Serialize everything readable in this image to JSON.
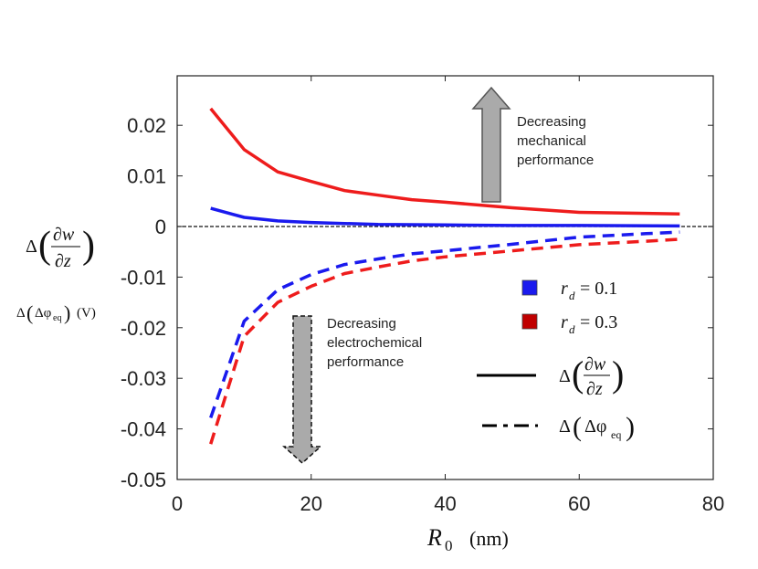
{
  "chart_data": {
    "type": "line",
    "title": "",
    "xlabel": "R0 (nm)",
    "xlabel_main": "R",
    "xlabel_sub": "0",
    "xlabel_unit": "(nm)",
    "ylabel_top": {
      "prefix": "Δ",
      "numerator": "∂w",
      "denominator": "∂z"
    },
    "ylabel_bottom": {
      "prefix": "Δ",
      "inner": "Δφ",
      "sub": "eq",
      "unit": "(V)"
    },
    "xlim": [
      0,
      80
    ],
    "ylim": [
      -0.05,
      0.03
    ],
    "xticks": [
      0,
      20,
      40,
      60,
      80
    ],
    "xtick_labels": [
      "0",
      "20",
      "40",
      "60",
      "80"
    ],
    "yticks": [
      0.02,
      0.01,
      0,
      -0.01,
      -0.02,
      -0.03,
      -0.04,
      -0.05
    ],
    "ytick_labels": [
      "0.02",
      "0.01",
      "0",
      "-0.01",
      "-0.02",
      "-0.03",
      "-0.04",
      "-0.05"
    ],
    "zero_line": true,
    "series": [
      {
        "name": "Δ(∂w/∂z), r_d = 0.3",
        "color": "#ee1c1c",
        "style": "solid",
        "x": [
          5,
          10,
          15,
          20,
          25,
          30,
          35,
          40,
          50,
          60,
          70,
          75
        ],
        "y": [
          0.0233,
          0.0152,
          0.0108,
          0.0089,
          0.0071,
          0.0062,
          0.0053,
          0.0048,
          0.0037,
          0.0028,
          0.0026,
          0.0025
        ]
      },
      {
        "name": "Δ(∂w/∂z), r_d = 0.1",
        "color": "#1a1aee",
        "style": "solid",
        "x": [
          5,
          10,
          15,
          20,
          25,
          30,
          40,
          50,
          60,
          75
        ],
        "y": [
          0.0036,
          0.0018,
          0.0011,
          0.0008,
          0.0006,
          0.0004,
          0.0003,
          0.0002,
          0.0002,
          0.0001
        ]
      },
      {
        "name": "Δ(Δφeq), r_d = 0.1",
        "color": "#1a1aee",
        "style": "dashed",
        "x": [
          5,
          10,
          15,
          20,
          25,
          30,
          35,
          40,
          50,
          60,
          70,
          75
        ],
        "y": [
          -0.0378,
          -0.0187,
          -0.0125,
          -0.0095,
          -0.0075,
          -0.0064,
          -0.0054,
          -0.0048,
          -0.0035,
          -0.0021,
          -0.0014,
          -0.0011
        ]
      },
      {
        "name": "Δ(Δφeq), r_d = 0.3",
        "color": "#ee1c1c",
        "style": "dashed",
        "x": [
          5,
          10,
          15,
          20,
          25,
          30,
          35,
          40,
          50,
          60,
          70,
          75
        ],
        "y": [
          -0.043,
          -0.0217,
          -0.015,
          -0.0118,
          -0.0093,
          -0.008,
          -0.0068,
          -0.006,
          -0.0048,
          -0.0036,
          -0.0029,
          -0.0025
        ]
      }
    ],
    "legend": {
      "placement": "center-right",
      "rd_prefix": "r",
      "rd_sub": "d",
      "items": [
        {
          "value": "= 0.1",
          "color": "#1a1aee"
        },
        {
          "value": "= 0.3",
          "color": "#c00000"
        }
      ],
      "style_items": [
        {
          "label": "Δ(∂w/∂z)",
          "style": "solid"
        },
        {
          "label": "Δ(Δφeq)",
          "style": "dashdot"
        }
      ]
    },
    "annotations": {
      "mechanical": [
        "Decreasing",
        "mechanical",
        "performance"
      ],
      "electrochemical": [
        "Decreasing",
        "electrochemical",
        "performance"
      ]
    }
  }
}
